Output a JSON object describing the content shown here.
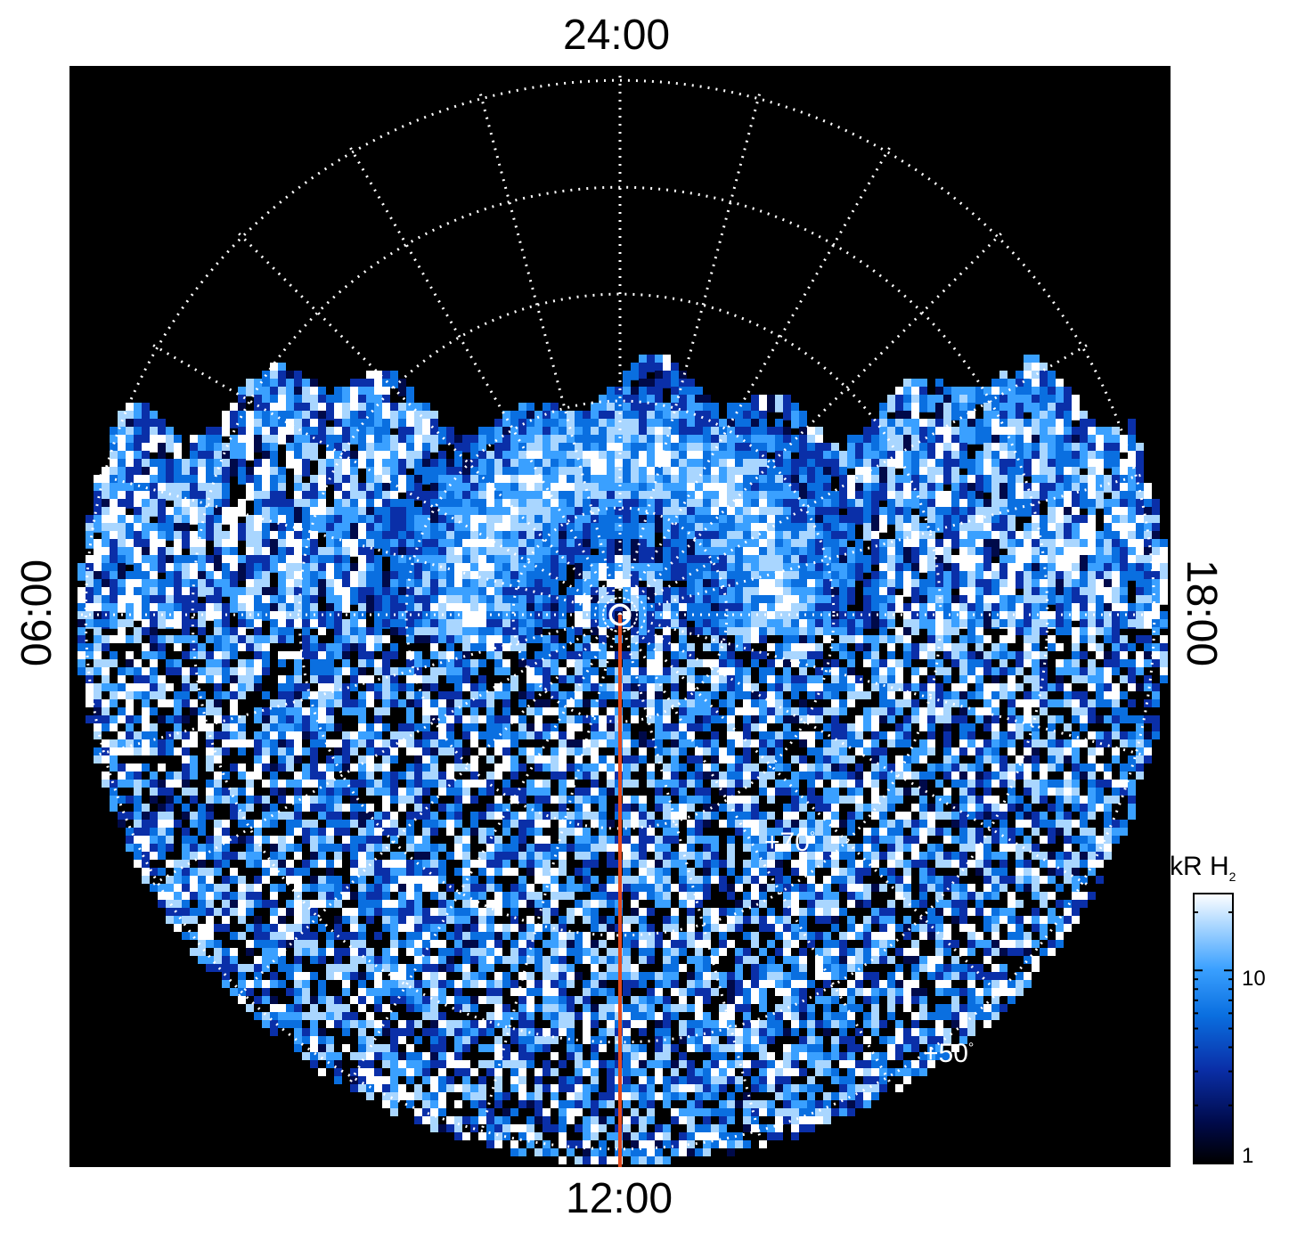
{
  "chart_data": {
    "type": "heatmap",
    "projection": "polar (north-pole view, local time vs latitude)",
    "local_time_labels": {
      "top": "24:00",
      "bottom": "12:00",
      "left": "06:00",
      "right": "18:00"
    },
    "latitude_labels": [
      {
        "text": "+70",
        "unit": "°"
      },
      {
        "text": "+50",
        "unit": "°"
      }
    ],
    "latitude_circles_deg": [
      80,
      70,
      60,
      50,
      40
    ],
    "longitude_lines_hours": [
      0,
      1,
      2,
      3,
      4,
      5,
      6,
      7,
      8,
      9,
      10,
      11,
      12,
      13,
      14,
      15,
      16,
      17,
      18,
      19,
      20,
      21,
      22,
      23
    ],
    "grid": true,
    "grid_style": "dotted white",
    "background_color": "#000000",
    "colorbar": {
      "title": "kR H",
      "title_subscript": "2",
      "scale": "log",
      "range": [
        1,
        25
      ],
      "ticks": [
        {
          "value": 1,
          "label": "1"
        },
        {
          "value": 10,
          "label": "10"
        }
      ],
      "colors": [
        "#000000",
        "#000a4a",
        "#0a2fa8",
        "#0a6fe0",
        "#3aa0ff",
        "#a9d6ff",
        "#ffffff"
      ]
    },
    "auroral_oval": {
      "description_color": "#cfe8ff",
      "center_local_time": "24:00",
      "brightness_kR_peak": 25
    },
    "subsolar_marker_line_color": "#e24a1e",
    "pole_marker": "circle"
  }
}
